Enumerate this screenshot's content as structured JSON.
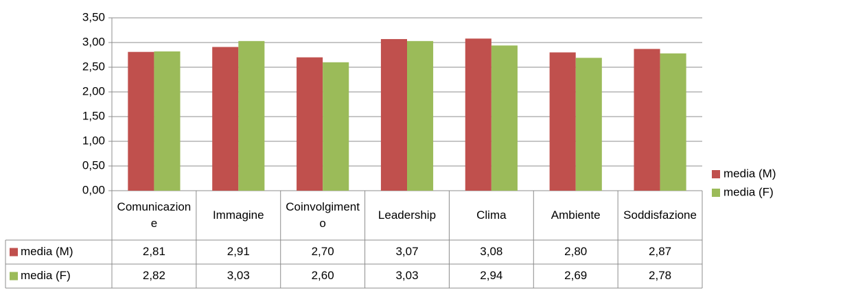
{
  "chart_data": {
    "type": "bar",
    "categories": [
      "Comunicazione",
      "Immagine",
      "Coinvolgimento",
      "Leadership",
      "Clima",
      "Ambiente",
      "Soddisfazione"
    ],
    "series": [
      {
        "name": "media (M)",
        "color": "#c0504d",
        "values": [
          2.81,
          2.91,
          2.7,
          3.07,
          3.08,
          2.8,
          2.87
        ],
        "value_labels": [
          "2,81",
          "2,91",
          "2,70",
          "3,07",
          "3,08",
          "2,80",
          "2,87"
        ]
      },
      {
        "name": "media (F)",
        "color": "#9bbb59",
        "values": [
          2.82,
          3.03,
          2.6,
          3.03,
          2.94,
          2.69,
          2.78
        ],
        "value_labels": [
          "2,82",
          "3,03",
          "2,60",
          "3,03",
          "2,94",
          "2,69",
          "2,78"
        ]
      }
    ],
    "ylim": [
      0,
      3.5
    ],
    "yticks": [
      {
        "value": 0,
        "label": "0,00"
      },
      {
        "value": 0.5,
        "label": "0,50"
      },
      {
        "value": 1,
        "label": "1,00"
      },
      {
        "value": 1.5,
        "label": "1,50"
      },
      {
        "value": 2,
        "label": "2,00"
      },
      {
        "value": 2.5,
        "label": "2,50"
      },
      {
        "value": 3,
        "label": "3,00"
      },
      {
        "value": 3.5,
        "label": "3,50"
      }
    ],
    "grid": true,
    "legend": "right",
    "data_table": true
  }
}
